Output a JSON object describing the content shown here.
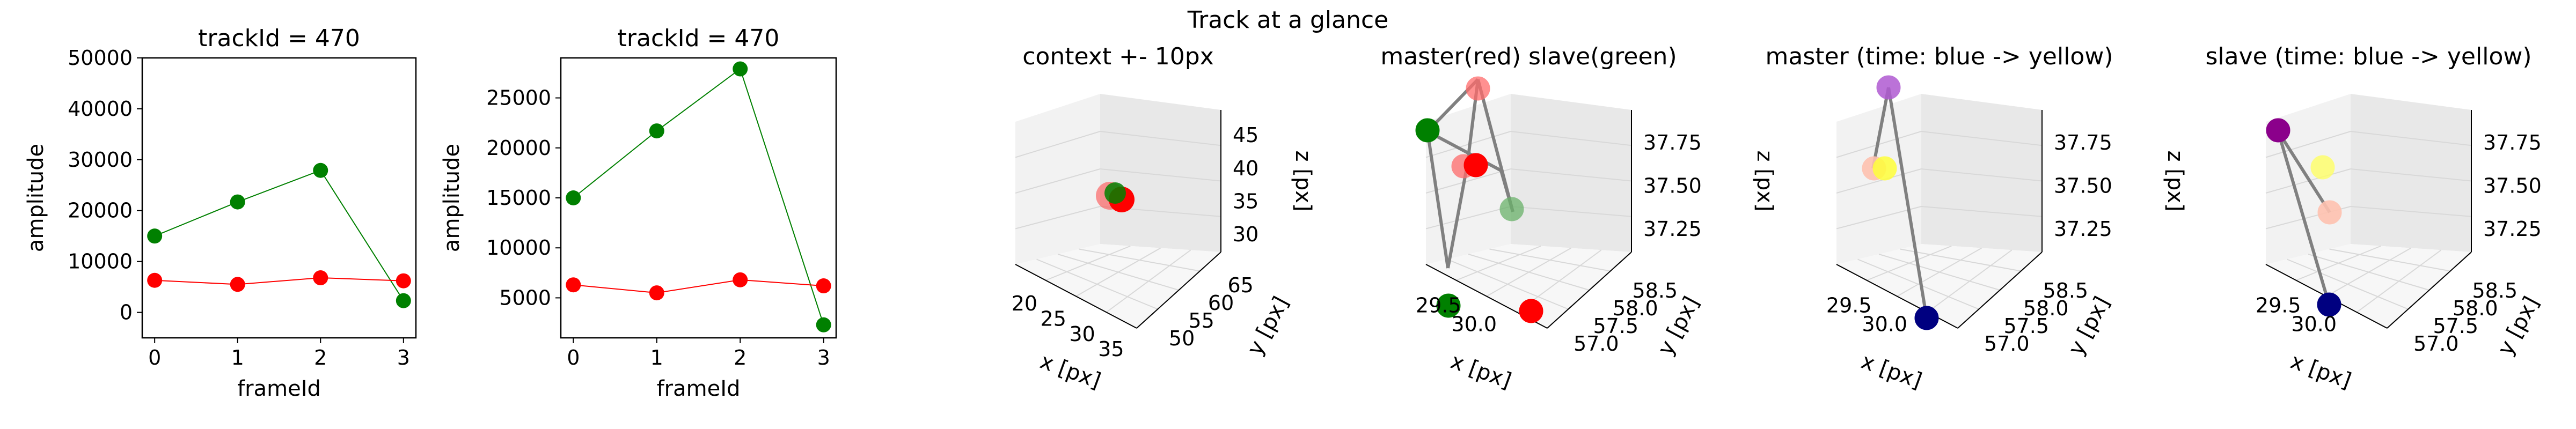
{
  "figure": {
    "suptitle": "Track at a glance"
  },
  "chart_data": [
    {
      "type": "line",
      "title": "trackId = 470",
      "xlabel": "frameId",
      "ylabel": "amplitude",
      "x": [
        0,
        1,
        2,
        3
      ],
      "xticks": [
        "0",
        "1",
        "2",
        "3"
      ],
      "yticks": [
        "0",
        "10000",
        "20000",
        "30000",
        "40000",
        "50000"
      ],
      "ytick_values": [
        0,
        10000,
        20000,
        30000,
        40000,
        50000
      ],
      "ylim": [
        -5000,
        50000
      ],
      "series": [
        {
          "color": "#008000",
          "values": [
            15000,
            21700,
            27900,
            2300
          ]
        },
        {
          "color": "#ff0000",
          "values": [
            6300,
            5500,
            6800,
            6200
          ]
        }
      ]
    },
    {
      "type": "line",
      "title": "trackId = 470",
      "xlabel": "frameId",
      "ylabel": "amplitude",
      "x": [
        0,
        1,
        2,
        3
      ],
      "xticks": [
        "0",
        "1",
        "2",
        "3"
      ],
      "yticks": [
        "5000",
        "10000",
        "15000",
        "20000",
        "25000"
      ],
      "ytick_values": [
        5000,
        10000,
        15000,
        20000,
        25000
      ],
      "ylim": [
        1000,
        29000
      ],
      "series": [
        {
          "color": "#008000",
          "values": [
            15000,
            21700,
            27900,
            2300
          ]
        },
        {
          "color": "#ff0000",
          "values": [
            6300,
            5500,
            6800,
            6200
          ]
        }
      ]
    },
    {
      "type": "scatter",
      "title": "context +- 10px",
      "xlabel": "x [px]",
      "ylabel": "y [px]",
      "zlabel": "z [px]",
      "xticks": [
        "20",
        "25",
        "30",
        "35"
      ],
      "yticks": [
        "50",
        "55",
        "60",
        "65"
      ],
      "zticks": [
        "30",
        "35",
        "40",
        "45"
      ],
      "points": [
        {
          "color": "#ff0000",
          "x": 29.6,
          "y": 57.6,
          "z": 37.6
        },
        {
          "color": "#008000",
          "x": 29.2,
          "y": 57.4,
          "z": 37.5
        }
      ]
    },
    {
      "type": "scatter",
      "title": "master(red) slave(green)",
      "xlabel": "x [px]",
      "ylabel": "y [px]",
      "zlabel": "z [px]",
      "xticks": [
        "29.5",
        "30.0"
      ],
      "yticks": [
        "57.0",
        "57.5",
        "58.0",
        "58.5"
      ],
      "zticks": [
        "37.25",
        "37.50",
        "37.75"
      ],
      "connections": "gray"
    },
    {
      "type": "scatter",
      "title": "master (time: blue -> yellow)",
      "xlabel": "x [px]",
      "ylabel": "y [px]",
      "zlabel": "z [px]",
      "xticks": [
        "29.5",
        "30.0"
      ],
      "yticks": [
        "57.0",
        "57.5",
        "58.0",
        "58.5"
      ],
      "zticks": [
        "37.25",
        "37.50",
        "37.75"
      ]
    },
    {
      "type": "scatter",
      "title": "slave (time: blue -> yellow)",
      "xlabel": "x [px]",
      "ylabel": "y [px]",
      "zlabel": "z [px]",
      "xticks": [
        "29.5",
        "30.0"
      ],
      "yticks": [
        "57.0",
        "57.5",
        "58.0",
        "58.5"
      ],
      "zticks": [
        "37.25",
        "37.50",
        "37.75"
      ]
    }
  ]
}
